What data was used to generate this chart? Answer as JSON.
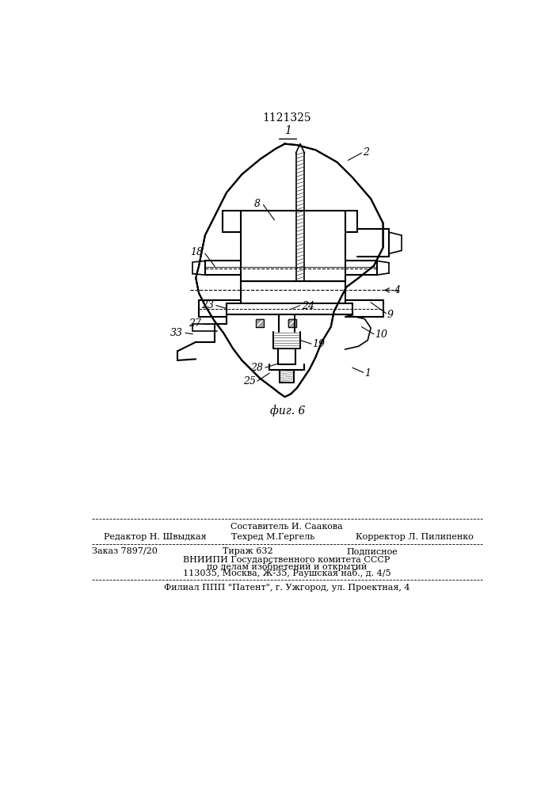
{
  "patent_number": "1121325",
  "figure_label": "фиг. 6",
  "background_color": "#ffffff",
  "line_color": "#000000",
  "footer": {
    "line1_center": "Составитель И. Саакова",
    "line2_left": "Редактор Н. Швыдкая",
    "line2_center": "Техред М.Гергель",
    "line2_right": "Корректор Л. Пилипенко",
    "line3_left": "Заказ 7897/20",
    "line3_center": "Тираж 632",
    "line3_right": "Подписное",
    "line4": "ВНИИПИ Государственного комитета СССР",
    "line5": "по делам изобретений и открытий",
    "line6": "113035, Москва, Ж-35, Раушская наб., д. 4/5",
    "line7": "Филиал ППП \"Патент\", г. Ужгород, ул. Проектная, 4"
  }
}
